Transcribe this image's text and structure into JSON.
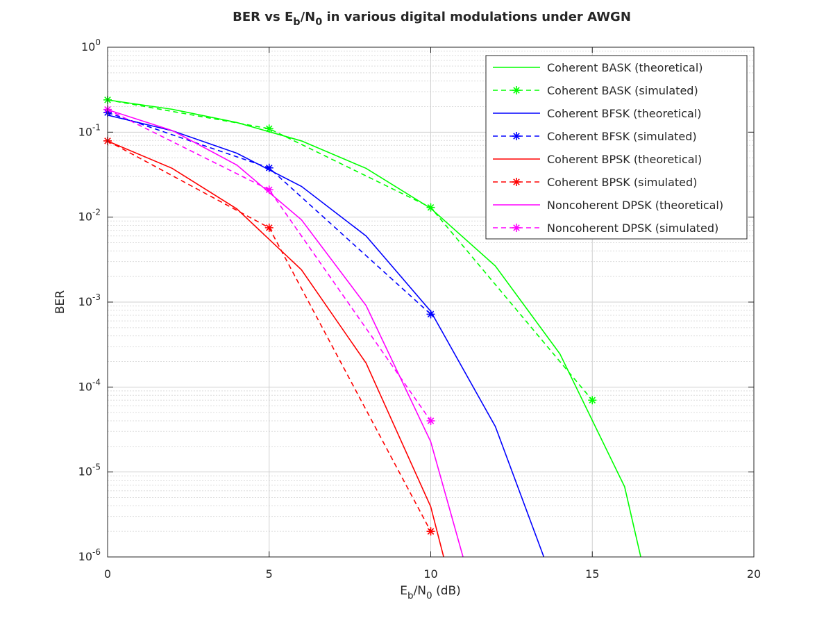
{
  "chart_data": {
    "type": "line",
    "title": "BER vs Eb/N0 in various digital modulations under AWGN",
    "xlabel": "Eb/N0 (dB)",
    "ylabel": "BER",
    "x_scale": "linear",
    "y_scale": "log",
    "xlim": [
      0,
      20
    ],
    "ylim": [
      1e-06,
      1
    ],
    "x_ticks": [
      "0",
      "5",
      "10",
      "15",
      "20"
    ],
    "y_ticks": [
      "10^0",
      "10^-1",
      "10^-2",
      "10^-3",
      "10^-4",
      "10^-5",
      "10^-6"
    ],
    "grid": true,
    "legend_position": "top-right",
    "series": [
      {
        "name": "Coherent BASK (theoretical)",
        "color": "#00ff00",
        "style": "solid",
        "marker": "none",
        "x": [
          0,
          2,
          4,
          6,
          8,
          10,
          12,
          14,
          16,
          16.5
        ],
        "y": [
          0.2398,
          0.186,
          0.1299,
          0.0789,
          0.0375,
          0.0127,
          0.00266,
          0.000245,
          6.7e-06,
          1e-06
        ]
      },
      {
        "name": "Coherent BASK (simulated)",
        "color": "#00ff00",
        "style": "dashed",
        "marker": "asterisk",
        "x": [
          0,
          5,
          10,
          15
        ],
        "y": [
          0.24,
          0.11,
          0.013,
          7e-05
        ],
        "marker_x": [
          0,
          5,
          10,
          15
        ]
      },
      {
        "name": "Coherent BFSK (theoretical)",
        "color": "#0000ff",
        "style": "solid",
        "marker": "none",
        "x": [
          0,
          2,
          4,
          6,
          8,
          10,
          12,
          13.5
        ],
        "y": [
          0.1587,
          0.104,
          0.0565,
          0.023,
          0.006,
          0.00078,
          3.43e-05,
          1e-06
        ]
      },
      {
        "name": "Coherent BFSK (simulated)",
        "color": "#0000ff",
        "style": "dashed",
        "marker": "asterisk",
        "x": [
          0,
          5,
          10
        ],
        "y": [
          0.17,
          0.038,
          0.00072
        ],
        "marker_x": [
          0,
          5,
          10
        ]
      },
      {
        "name": "Coherent BPSK (theoretical)",
        "color": "#ff0000",
        "style": "solid",
        "marker": "none",
        "x": [
          0,
          2,
          4,
          6,
          8,
          10,
          10.4
        ],
        "y": [
          0.0786,
          0.0375,
          0.0125,
          0.0024,
          0.000191,
          3.9e-06,
          1e-06
        ]
      },
      {
        "name": "Coherent BPSK (simulated)",
        "color": "#ff0000",
        "style": "dashed",
        "marker": "asterisk",
        "x": [
          0,
          5,
          10
        ],
        "y": [
          0.079,
          0.0075,
          2e-06
        ],
        "marker_x": [
          0,
          5,
          10
        ]
      },
      {
        "name": "Noncoherent DPSK (theoretical)",
        "color": "#ff00ff",
        "style": "solid",
        "marker": "none",
        "x": [
          0,
          2,
          4,
          6,
          8,
          10,
          11
        ],
        "y": [
          0.1839,
          0.1046,
          0.041,
          0.0093,
          0.00091,
          2.27e-05,
          1e-06
        ]
      },
      {
        "name": "Noncoherent DPSK (simulated)",
        "color": "#ff00ff",
        "style": "dashed",
        "marker": "asterisk",
        "x": [
          0,
          5,
          10
        ],
        "y": [
          0.185,
          0.021,
          4e-05
        ],
        "marker_x": [
          0,
          5,
          10
        ]
      }
    ]
  }
}
